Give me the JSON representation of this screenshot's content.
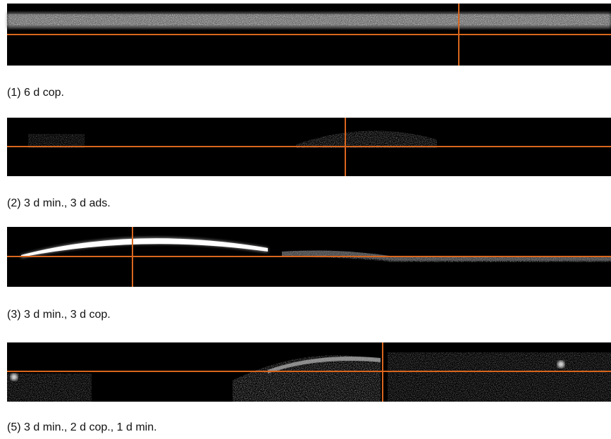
{
  "panels": [
    {
      "caption": "(1) 6 d cop."
    },
    {
      "caption": "(2) 3 d min., 3 d ads."
    },
    {
      "caption": "(3) 3 d min., 3 d cop."
    },
    {
      "caption": "(5) 3 d min., 2 d cop., 1 d min."
    }
  ]
}
